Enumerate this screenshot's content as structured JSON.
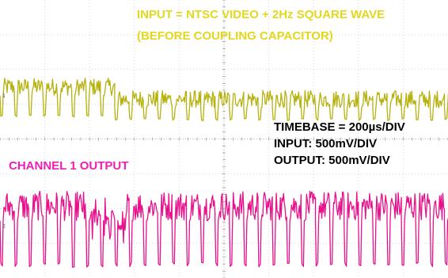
{
  "chart_data": {
    "type": "line",
    "annotations": {
      "input_title_line1": "INPUT = NTSC VIDEO + 2Hz SQUARE WAVE",
      "input_title_line2": "(BEFORE COUPLING CAPACITOR)",
      "timebase": "TIMEBASE = 200µs/DIV",
      "input_scale": "INPUT: 500mV/DIV",
      "output_scale": "OUTPUT: 500mV/DIV",
      "channel_label": "CHANNEL 1 OUTPUT"
    },
    "channel_markers": [
      "1",
      "2"
    ],
    "grid": true,
    "divisions": {
      "x": 10,
      "y": 8
    },
    "series": [
      {
        "trace": "input",
        "color": "#b5b20e",
        "label_color": "#e3d81d",
        "baseline_div": 1.25,
        "sync_depth_div": 0.55,
        "video_amplitude_div": 0.5,
        "step_at_div": 2.35,
        "step_size_div": -0.35,
        "line_period_div": 0.32
      },
      {
        "trace": "output",
        "color": "#e8108b",
        "label_color": "#ee1fb5",
        "baseline_div": -2.35,
        "sync_depth_div": 1.2,
        "video_amplitude_div": 0.85,
        "glitch_at_div": 2.35,
        "line_period_div": 0.32
      }
    ]
  }
}
